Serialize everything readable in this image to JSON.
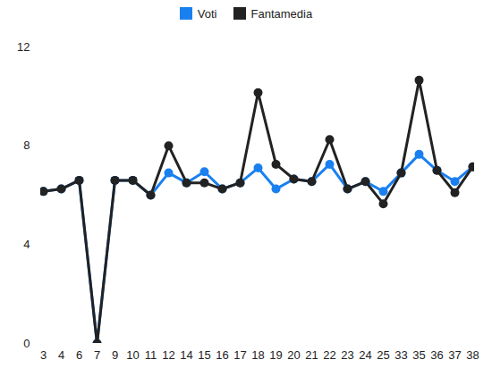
{
  "chart_data": {
    "type": "line",
    "categories": [
      "3",
      "4",
      "6",
      "7",
      "9",
      "10",
      "11",
      "12",
      "14",
      "15",
      "16",
      "17",
      "18",
      "19",
      "20",
      "21",
      "22",
      "23",
      "24",
      "25",
      "33",
      "35",
      "36",
      "37",
      "38"
    ],
    "series": [
      {
        "name": "Voti",
        "color": "#1a80f0",
        "marker": "circle",
        "values": [
          6.15,
          6.25,
          6.6,
          0,
          6.6,
          6.6,
          6.0,
          6.9,
          6.5,
          6.95,
          6.25,
          6.5,
          7.1,
          6.25,
          6.65,
          6.55,
          7.25,
          6.25,
          6.55,
          6.15,
          6.9,
          7.65,
          7.0,
          6.55,
          7.15
        ]
      },
      {
        "name": "Fantamedia",
        "color": "#222222",
        "marker": "circle",
        "values": [
          6.15,
          6.25,
          6.6,
          0,
          6.6,
          6.6,
          6.0,
          8.0,
          6.5,
          6.5,
          6.25,
          6.5,
          10.15,
          7.25,
          6.65,
          6.55,
          8.25,
          6.25,
          6.55,
          5.65,
          6.9,
          10.65,
          7.0,
          6.1,
          7.15
        ]
      }
    ],
    "ylim": [
      0,
      12
    ],
    "yticks": [
      0,
      4,
      8,
      12
    ],
    "grid": false,
    "legend": "top"
  }
}
